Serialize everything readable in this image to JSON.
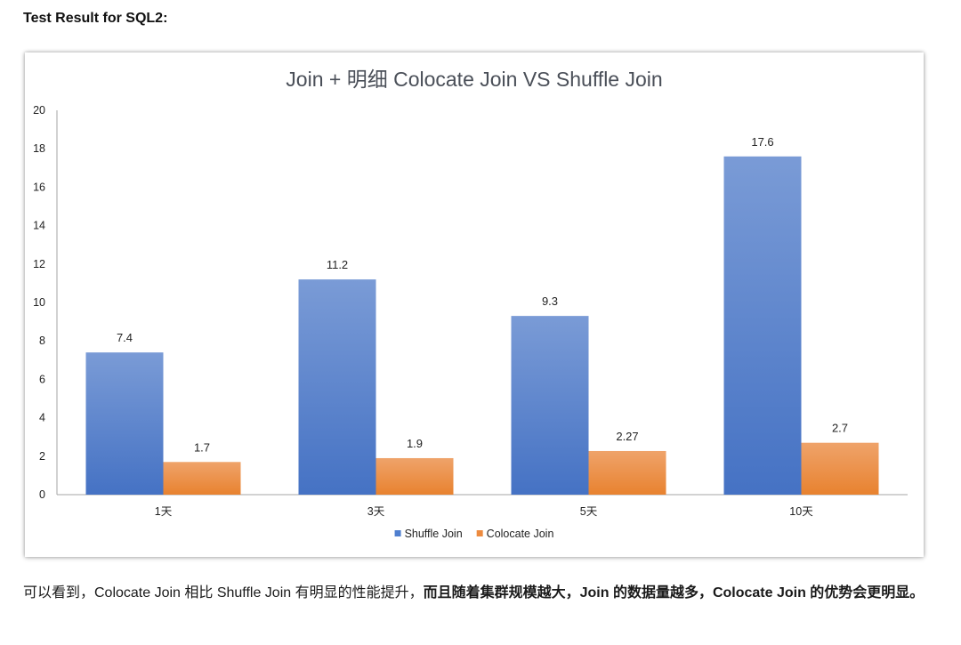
{
  "heading": "Test Result for SQL2:",
  "colors": {
    "series1": "#4f7fcf",
    "series2": "#ed8b3f",
    "axis": "#a6a6a6"
  },
  "chart_data": {
    "type": "bar",
    "title": "Join + 明细 Colocate Join VS Shuffle Join",
    "categories": [
      "1天",
      "3天",
      "5天",
      "10天"
    ],
    "series": [
      {
        "name": "Shuffle Join",
        "values": [
          7.4,
          11.2,
          9.3,
          17.6
        ],
        "labels": [
          "7.4",
          "11.2",
          "9.3",
          "17.6"
        ]
      },
      {
        "name": "Colocate Join",
        "values": [
          1.7,
          1.9,
          2.27,
          2.7
        ],
        "labels": [
          "1.7",
          "1.9",
          "2.27",
          "2.7"
        ]
      }
    ],
    "ylim": [
      0,
      20
    ],
    "yticks": [
      0,
      2,
      4,
      6,
      8,
      10,
      12,
      14,
      16,
      18,
      20
    ],
    "legend": "bottom",
    "xlabel": "",
    "ylabel": ""
  },
  "paragraph": {
    "part1": "可以看到，Colocate Join 相比 Shuffle Join 有明显的性能提升，",
    "part2": "而且随着集群规模越大，Join 的数据量越多，Colocate Join 的优势会更明显。"
  }
}
